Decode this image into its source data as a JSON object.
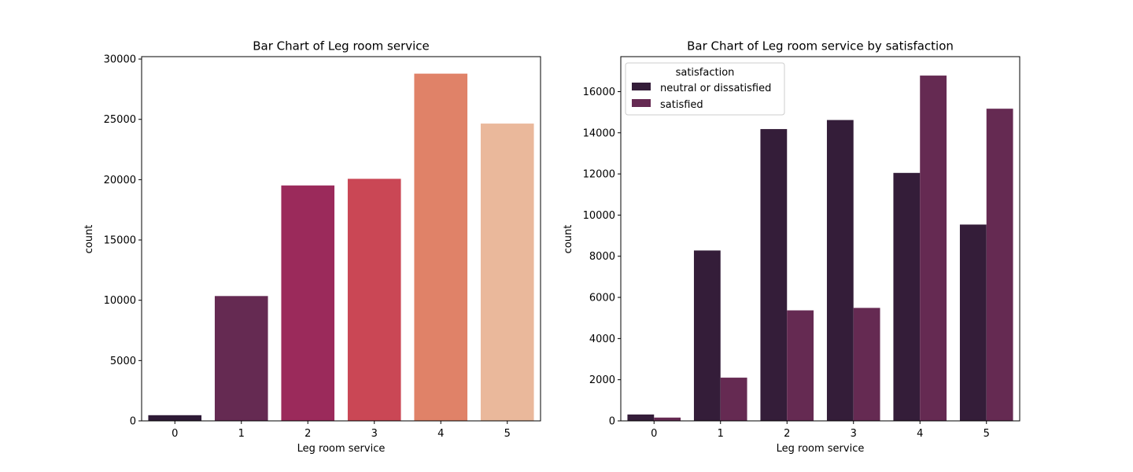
{
  "chart_data": [
    {
      "type": "bar",
      "title": "Bar Chart of Leg room service",
      "xlabel": "Leg room service",
      "ylabel": "count",
      "categories": [
        "0",
        "1",
        "2",
        "3",
        "4",
        "5"
      ],
      "values": [
        470,
        10350,
        19520,
        20070,
        28790,
        24650
      ],
      "ylim": [
        0,
        30200
      ],
      "yticks": [
        0,
        5000,
        10000,
        15000,
        20000,
        25000,
        30000
      ],
      "colors": [
        "#2e1a36",
        "#652a52",
        "#9b2a5b",
        "#ca4755",
        "#e08268",
        "#eab89b"
      ],
      "grid": false
    },
    {
      "type": "bar",
      "title": "Bar Chart of Leg room service by satisfaction",
      "xlabel": "Leg room service",
      "ylabel": "count",
      "categories": [
        "0",
        "1",
        "2",
        "3",
        "4",
        "5"
      ],
      "series": [
        {
          "name": "neutral or dissatisfied",
          "values": [
            310,
            8280,
            14180,
            14620,
            12050,
            9540
          ],
          "color": "#341d39"
        },
        {
          "name": "satisfied",
          "values": [
            160,
            2100,
            5370,
            5490,
            16780,
            15170
          ],
          "color": "#652a52"
        }
      ],
      "ylim": [
        0,
        17700
      ],
      "yticks": [
        0,
        2000,
        4000,
        6000,
        8000,
        10000,
        12000,
        14000,
        16000
      ],
      "legend": {
        "title": "satisfaction",
        "position": "top-left"
      },
      "grid": false
    }
  ]
}
